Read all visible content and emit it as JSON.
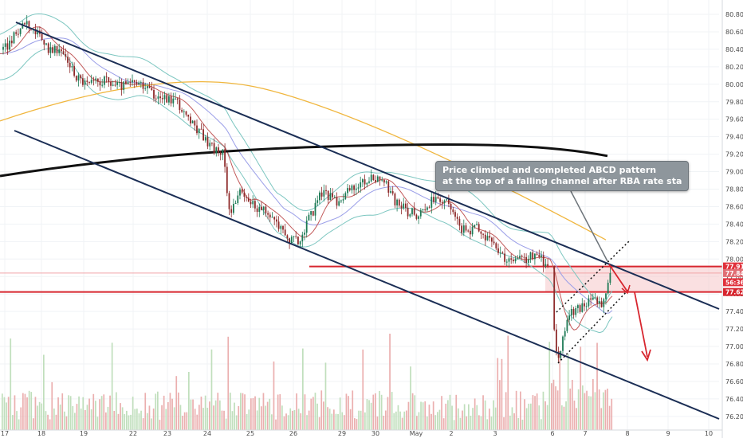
{
  "chart_data": {
    "type": "candlestick",
    "instrument_note": "",
    "y_ticks": [
      "80.800",
      "80.600",
      "80.400",
      "80.200",
      "80.000",
      "79.800",
      "79.600",
      "79.400",
      "79.200",
      "79.000",
      "78.800",
      "78.600",
      "78.400",
      "78.200",
      "78.000",
      "77.800",
      "77.600",
      "77.400",
      "77.200",
      "77.000",
      "76.800",
      "76.600",
      "76.400",
      "76.200"
    ],
    "ylim": [
      76.1,
      80.92
    ],
    "x_ticks": [
      "17",
      "18",
      "19",
      "22",
      "23",
      "24",
      "25",
      "26",
      "29",
      "30",
      "May",
      "2",
      "3",
      "6",
      "7",
      "8",
      "9",
      "10"
    ],
    "price_tags": [
      {
        "label": "77.915",
        "value": 77.915,
        "color": "#e0303a"
      },
      {
        "label": "77.840",
        "value": 77.84,
        "color": "#e06e74"
      },
      {
        "label": "56:36",
        "value": 77.735,
        "color": "#e0303a"
      },
      {
        "label": "77.623",
        "value": 77.623,
        "color": "#d7262f"
      }
    ],
    "annotation": {
      "line1": "Price climbed and completed ABCD pattern",
      "line2": "at the top of a falling channel after RBA rate statement."
    },
    "price_path": [
      [
        0,
        80.35
      ],
      [
        18,
        80.55
      ],
      [
        32,
        80.75
      ],
      [
        48,
        80.55
      ],
      [
        62,
        80.4
      ],
      [
        80,
        80.35
      ],
      [
        95,
        80.1
      ],
      [
        110,
        80.0
      ],
      [
        130,
        80.05
      ],
      [
        150,
        79.98
      ],
      [
        170,
        80.02
      ],
      [
        185,
        79.92
      ],
      [
        205,
        79.85
      ],
      [
        222,
        79.82
      ],
      [
        235,
        79.6
      ],
      [
        255,
        79.4
      ],
      [
        270,
        79.25
      ],
      [
        280,
        79.2
      ],
      [
        288,
        78.55
      ],
      [
        300,
        78.75
      ],
      [
        315,
        78.65
      ],
      [
        330,
        78.55
      ],
      [
        345,
        78.45
      ],
      [
        360,
        78.25
      ],
      [
        375,
        78.2
      ],
      [
        390,
        78.5
      ],
      [
        405,
        78.8
      ],
      [
        420,
        78.65
      ],
      [
        440,
        78.8
      ],
      [
        460,
        78.9
      ],
      [
        478,
        78.95
      ],
      [
        495,
        78.65
      ],
      [
        510,
        78.55
      ],
      [
        525,
        78.5
      ],
      [
        540,
        78.65
      ],
      [
        556,
        78.7
      ],
      [
        570,
        78.45
      ],
      [
        585,
        78.3
      ],
      [
        600,
        78.35
      ],
      [
        618,
        78.15
      ],
      [
        635,
        77.98
      ],
      [
        655,
        78.0
      ],
      [
        672,
        78.05
      ],
      [
        688,
        77.92
      ],
      [
        693,
        77.35
      ],
      [
        700,
        76.85
      ],
      [
        712,
        77.35
      ],
      [
        728,
        77.45
      ],
      [
        742,
        77.55
      ],
      [
        756,
        77.42
      ],
      [
        764,
        77.85
      ],
      [
        772,
        77.6
      ]
    ]
  }
}
